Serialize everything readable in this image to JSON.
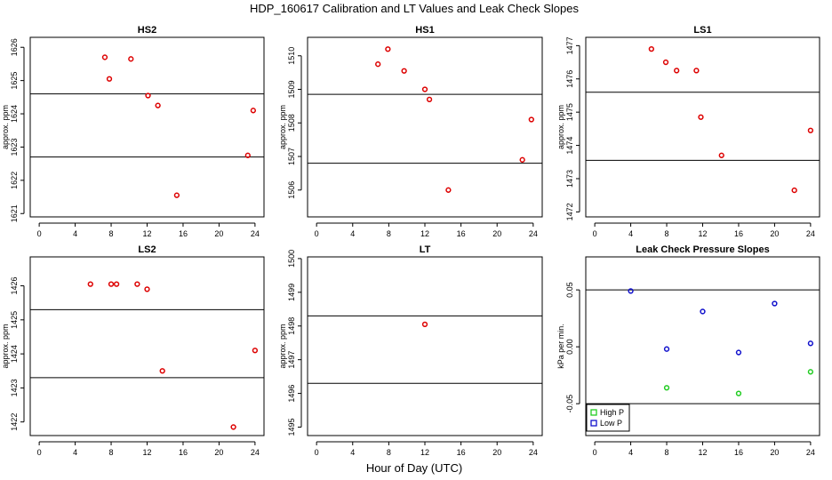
{
  "figure": {
    "title": "HDP_160617  Calibration and LT Values and Leak Check Slopes",
    "xlabel": "Hour of Day (UTC)"
  },
  "colors": {
    "point": "#dd0000",
    "high_p": "#22cc22",
    "low_p": "#1111cc",
    "axis": "#000000"
  },
  "chart_data": [
    {
      "id": "hs2",
      "type": "scatter",
      "title": "HS2",
      "ylabel": "approx. ppm",
      "xlim": [
        -1,
        25
      ],
      "ylim": [
        1620.9,
        1626.3
      ],
      "xticks": [
        0,
        4,
        8,
        12,
        16,
        20,
        24
      ],
      "xtick_labels": [
        "0",
        "4",
        "8",
        "12",
        "16",
        "20",
        "24"
      ],
      "yticks": [
        1621,
        1622,
        1623,
        1624,
        1625,
        1626
      ],
      "ytick_labels": [
        "1621",
        "1622",
        "1623",
        "1624",
        "1625",
        "1626"
      ],
      "hlines": [
        1624.6,
        1622.7
      ],
      "series": [
        {
          "name": "values",
          "color": "#dd0000",
          "x": [
            7.3,
            7.8,
            10.2,
            12.1,
            13.2,
            15.3,
            23.2,
            23.8
          ],
          "y": [
            1625.7,
            1625.05,
            1625.65,
            1624.55,
            1624.25,
            1621.55,
            1622.75,
            1624.1
          ]
        }
      ]
    },
    {
      "id": "hs1",
      "type": "scatter",
      "title": "HS1",
      "ylabel": "approx. ppm",
      "xlim": [
        -1,
        25
      ],
      "ylim": [
        1505.2,
        1510.55
      ],
      "xticks": [
        0,
        4,
        8,
        12,
        16,
        20,
        24
      ],
      "xtick_labels": [
        "0",
        "4",
        "8",
        "12",
        "16",
        "20",
        "24"
      ],
      "yticks": [
        1506,
        1507,
        1508,
        1509,
        1510
      ],
      "ytick_labels": [
        "1506",
        "1507",
        "1508",
        "1509",
        "1510"
      ],
      "hlines": [
        1508.85,
        1506.8
      ],
      "series": [
        {
          "name": "values",
          "color": "#dd0000",
          "x": [
            6.8,
            7.9,
            9.7,
            12.0,
            12.5,
            14.6,
            22.8,
            23.8
          ],
          "y": [
            1509.75,
            1510.2,
            1509.55,
            1509.0,
            1508.7,
            1506.0,
            1506.9,
            1508.1
          ]
        }
      ]
    },
    {
      "id": "ls1",
      "type": "scatter",
      "title": "LS1",
      "ylabel": "approx. ppm",
      "xlim": [
        -1,
        25
      ],
      "ylim": [
        1471.85,
        1477.25
      ],
      "xticks": [
        0,
        4,
        8,
        12,
        16,
        20,
        24
      ],
      "xtick_labels": [
        "0",
        "4",
        "8",
        "12",
        "16",
        "20",
        "24"
      ],
      "yticks": [
        1472,
        1473,
        1474,
        1475,
        1476,
        1477
      ],
      "ytick_labels": [
        "1472",
        "1473",
        "1474",
        "1475",
        "1476",
        "1477"
      ],
      "hlines": [
        1475.6,
        1473.55
      ],
      "series": [
        {
          "name": "values",
          "color": "#dd0000",
          "x": [
            6.3,
            7.9,
            9.1,
            11.3,
            11.8,
            14.1,
            22.2,
            24.0
          ],
          "y": [
            1476.9,
            1476.5,
            1476.25,
            1476.25,
            1474.85,
            1473.7,
            1472.65,
            1474.45
          ]
        }
      ]
    },
    {
      "id": "ls2",
      "type": "scatter",
      "title": "LS2",
      "ylabel": "approx. ppm",
      "xlim": [
        -1,
        25
      ],
      "ylim": [
        1421.6,
        1426.85
      ],
      "xticks": [
        0,
        4,
        8,
        12,
        16,
        20,
        24
      ],
      "xtick_labels": [
        "0",
        "4",
        "8",
        "12",
        "16",
        "20",
        "24"
      ],
      "yticks": [
        1422,
        1423,
        1424,
        1425,
        1426
      ],
      "ytick_labels": [
        "1422",
        "1423",
        "1424",
        "1425",
        "1426"
      ],
      "hlines": [
        1425.3,
        1423.3
      ],
      "series": [
        {
          "name": "values",
          "color": "#dd0000",
          "x": [
            5.7,
            8.0,
            8.6,
            10.9,
            12.0,
            13.7,
            21.6,
            24.0
          ],
          "y": [
            1426.05,
            1426.05,
            1426.05,
            1426.05,
            1425.9,
            1423.5,
            1421.85,
            1424.1
          ]
        }
      ]
    },
    {
      "id": "lt",
      "type": "scatter",
      "title": "LT",
      "ylabel": "approx. ppm",
      "xlim": [
        -1,
        25
      ],
      "ylim": [
        1494.75,
        1500.05
      ],
      "xticks": [
        0,
        4,
        8,
        12,
        16,
        20,
        24
      ],
      "xtick_labels": [
        "0",
        "4",
        "8",
        "12",
        "16",
        "20",
        "24"
      ],
      "yticks": [
        1495,
        1496,
        1497,
        1498,
        1499,
        1500
      ],
      "ytick_labels": [
        "1495",
        "1496",
        "1497",
        "1498",
        "1499",
        "1500"
      ],
      "hlines": [
        1498.3,
        1496.3
      ],
      "series": [
        {
          "name": "values",
          "color": "#dd0000",
          "x": [
            12.0
          ],
          "y": [
            1498.05
          ]
        }
      ]
    },
    {
      "id": "lc",
      "type": "scatter",
      "title": "Leak Check Pressure Slopes",
      "ylabel": "kPa per min.",
      "xlim": [
        -1,
        25
      ],
      "ylim": [
        -0.078,
        0.079
      ],
      "xticks": [
        0,
        4,
        8,
        12,
        16,
        20,
        24
      ],
      "xtick_labels": [
        "0",
        "4",
        "8",
        "12",
        "16",
        "20",
        "24"
      ],
      "yticks": [
        -0.05,
        0.0,
        0.05
      ],
      "ytick_labels": [
        "-0.05",
        "0.00",
        "0.05"
      ],
      "hlines": [
        0.05,
        -0.05
      ],
      "legend": {
        "position": "bottom-left",
        "entries": [
          "High P",
          "Low P"
        ]
      },
      "series": [
        {
          "name": "High P",
          "color": "#22cc22",
          "x": [
            8.0,
            16.0,
            24.0
          ],
          "y": [
            -0.036,
            -0.041,
            -0.022
          ]
        },
        {
          "name": "Low P",
          "color": "#1111cc",
          "x": [
            4.0,
            8.0,
            12.0,
            16.0,
            20.0,
            24.0
          ],
          "y": [
            0.049,
            -0.002,
            0.031,
            -0.005,
            0.038,
            0.003
          ]
        }
      ]
    }
  ]
}
